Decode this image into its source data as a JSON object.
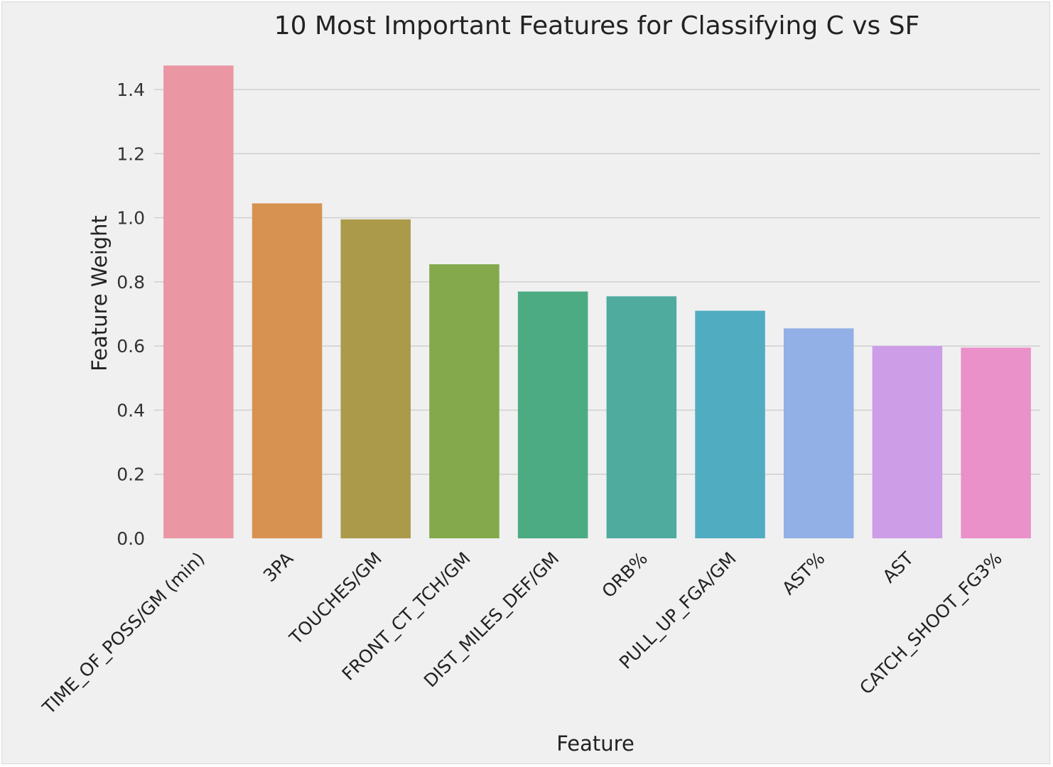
{
  "chart_data": {
    "type": "bar",
    "title": "10 Most Important Features for Classifying C vs SF",
    "xlabel": "Feature",
    "ylabel": "Feature Weight",
    "ylim": [
      0,
      1.5
    ],
    "yticks": [
      "0.0",
      "0.2",
      "0.4",
      "0.6",
      "0.8",
      "1.0",
      "1.2",
      "1.4"
    ],
    "grid": true,
    "categories": [
      "TIME_OF_POSS/GM (min)",
      "3PA",
      "TOUCHES/GM",
      "FRONT_CT_TCH/GM",
      "DIST_MILES_DEF/GM",
      "ORB%",
      "PULL_UP_FGA/GM",
      "AST%",
      "AST",
      "CATCH_SHOOT_FG3%"
    ],
    "values": [
      1.475,
      1.045,
      0.995,
      0.855,
      0.77,
      0.755,
      0.71,
      0.655,
      0.6,
      0.595
    ],
    "colors": [
      "#ea96a3",
      "#d79251",
      "#ab9a4a",
      "#84a94c",
      "#4cab82",
      "#4eab9e",
      "#50acc1",
      "#92afe6",
      "#cd9de8",
      "#ea91c9"
    ]
  }
}
